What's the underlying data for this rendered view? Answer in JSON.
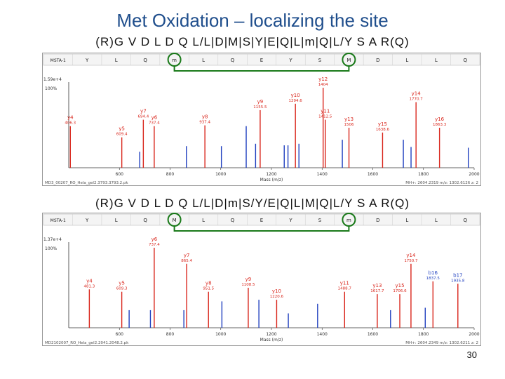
{
  "title": "Met Oxidation – localizing the site",
  "page_number": "30",
  "colors": {
    "y_ion": "#d9261c",
    "b_ion": "#1f3fbf",
    "unassigned": "#222222",
    "mark": "#1a7a1a"
  },
  "chart_data": [
    {
      "type": "bar",
      "sequence_label": "(R)G V D L D Q L/L|D|M|S|Y|E|Q|L|m|Q|L/Y S A R(Q)",
      "residue_row": [
        "MSTA-1",
        "Y",
        "L",
        "Q",
        "m",
        "L",
        "Q",
        "E",
        "Y",
        "S",
        "M",
        "D",
        "L",
        "L",
        "Q"
      ],
      "circled_residues": [
        "m",
        "M"
      ],
      "ylabel_top": "1.59e+4",
      "ylabel_100": "100%",
      "xlabel": "Mass (m/z)",
      "xlim": [
        400,
        2000
      ],
      "x_ticks": [
        600,
        800,
        1000,
        1200,
        1400,
        1600,
        1800,
        2000
      ],
      "peaks": [
        {
          "x": 406.3,
          "y": 0.52,
          "ion": "y"
        },
        {
          "x": 609.4,
          "y": 0.38,
          "ion": "y"
        },
        {
          "x": 680.1,
          "y": 0.2,
          "ion": "b"
        },
        {
          "x": 694.4,
          "y": 0.6,
          "ion": "y"
        },
        {
          "x": 737.4,
          "y": 0.52,
          "ion": "y"
        },
        {
          "x": 864.4,
          "y": 0.27,
          "ion": "b"
        },
        {
          "x": 937.4,
          "y": 0.53,
          "ion": "y"
        },
        {
          "x": 1002.5,
          "y": 0.27,
          "ion": "b"
        },
        {
          "x": 1100.4,
          "y": 0.52,
          "ion": "b"
        },
        {
          "x": 1137.4,
          "y": 0.3,
          "ion": "b"
        },
        {
          "x": 1155.5,
          "y": 0.72,
          "ion": "y"
        },
        {
          "x": 1250.5,
          "y": 0.28,
          "ion": "b"
        },
        {
          "x": 1265.3,
          "y": 0.28,
          "ion": "b"
        },
        {
          "x": 1294.6,
          "y": 0.8,
          "ion": "y"
        },
        {
          "x": 1308.5,
          "y": 0.3,
          "ion": "b"
        },
        {
          "x": 1404.0,
          "y": 1.0,
          "ion": "y"
        },
        {
          "x": 1412.5,
          "y": 0.6,
          "ion": "y"
        },
        {
          "x": 1479.8,
          "y": 0.35,
          "ion": "b"
        },
        {
          "x": 1506.0,
          "y": 0.5,
          "ion": "y"
        },
        {
          "x": 1638.6,
          "y": 0.44,
          "ion": "y"
        },
        {
          "x": 1720.6,
          "y": 0.35,
          "ion": "b"
        },
        {
          "x": 1751.0,
          "y": 0.26,
          "ion": "b"
        },
        {
          "x": 1770.7,
          "y": 0.82,
          "ion": "y"
        },
        {
          "x": 1863.3,
          "y": 0.5,
          "ion": "y"
        },
        {
          "x": 1977.0,
          "y": 0.25,
          "ion": "b"
        }
      ],
      "labels": [
        {
          "text": "y4",
          "x": 406.3
        },
        {
          "text": "y5",
          "x": 609.4
        },
        {
          "text": "y7",
          "x": 694.4
        },
        {
          "text": "y6",
          "x": 737.4
        },
        {
          "text": "y8",
          "x": 937.4
        },
        {
          "text": "y9",
          "x": 1155.5
        },
        {
          "text": "y10",
          "x": 1294.6
        },
        {
          "text": "y12",
          "x": 1404.0
        },
        {
          "text": "y11",
          "x": 1412.5
        },
        {
          "text": "y13",
          "x": 1506.0
        },
        {
          "text": "y15",
          "x": 1638.6
        },
        {
          "text": "y14",
          "x": 1770.7
        },
        {
          "text": "y16",
          "x": 1863.3
        }
      ],
      "footer_left": "MD3_00207_RO_Hela_gel2.3793.3793.2.pk",
      "footer_right": "MH+: 2604.2319   m/z: 1302.6126   z: 2"
    },
    {
      "type": "bar",
      "sequence_label": "(R)G V D L D Q L/L|D|m|S/Y/E|Q|L|M|Q|L/Y S A R(Q)",
      "residue_row": [
        "MSTA-1",
        "Y",
        "L",
        "Q",
        "M",
        "L",
        "Q",
        "E",
        "Y",
        "S",
        "m",
        "D",
        "L",
        "L",
        "Q"
      ],
      "circled_residues": [
        "M",
        "m"
      ],
      "ylabel_top": "1.37e+4",
      "ylabel_100": "100%",
      "xlabel": "Mass (m/z)",
      "xlim": [
        400,
        2000
      ],
      "x_ticks": [
        600,
        800,
        1000,
        1200,
        1400,
        1600,
        1800,
        2000
      ],
      "peaks": [
        {
          "x": 481.3,
          "y": 0.48,
          "ion": "y"
        },
        {
          "x": 609.3,
          "y": 0.45,
          "ion": "y"
        },
        {
          "x": 638.4,
          "y": 0.22,
          "ion": "b"
        },
        {
          "x": 722.4,
          "y": 0.22,
          "ion": "b"
        },
        {
          "x": 737.4,
          "y": 1.0,
          "ion": "y"
        },
        {
          "x": 854.4,
          "y": 0.22,
          "ion": "b"
        },
        {
          "x": 865.4,
          "y": 0.8,
          "ion": "y"
        },
        {
          "x": 951.5,
          "y": 0.45,
          "ion": "y"
        },
        {
          "x": 1004.5,
          "y": 0.33,
          "ion": "b"
        },
        {
          "x": 1108.5,
          "y": 0.5,
          "ion": "y"
        },
        {
          "x": 1150.5,
          "y": 0.35,
          "ion": "b"
        },
        {
          "x": 1220.6,
          "y": 0.35,
          "ion": "y"
        },
        {
          "x": 1266.6,
          "y": 0.18,
          "ion": "b"
        },
        {
          "x": 1382.2,
          "y": 0.3,
          "ion": "b"
        },
        {
          "x": 1488.7,
          "y": 0.45,
          "ion": "y"
        },
        {
          "x": 1617.7,
          "y": 0.42,
          "ion": "y"
        },
        {
          "x": 1670.0,
          "y": 0.22,
          "ion": "b"
        },
        {
          "x": 1706.6,
          "y": 0.42,
          "ion": "y"
        },
        {
          "x": 1750.7,
          "y": 0.8,
          "ion": "y"
        },
        {
          "x": 1807.0,
          "y": 0.25,
          "ion": "b"
        },
        {
          "x": 1837.5,
          "y": 0.58,
          "ion": "y"
        },
        {
          "x": 1935.8,
          "y": 0.55,
          "ion": "y"
        }
      ],
      "labels": [
        {
          "text": "y4",
          "x": 481.3
        },
        {
          "text": "y5",
          "x": 609.3
        },
        {
          "text": "y6",
          "x": 737.4
        },
        {
          "text": "y7",
          "x": 865.4
        },
        {
          "text": "y8",
          "x": 951.5
        },
        {
          "text": "y9",
          "x": 1108.5
        },
        {
          "text": "y10",
          "x": 1220.6
        },
        {
          "text": "y11",
          "x": 1488.7
        },
        {
          "text": "y13",
          "x": 1617.7
        },
        {
          "text": "y15",
          "x": 1706.6
        },
        {
          "text": "y14",
          "x": 1750.7
        },
        {
          "text": "b16",
          "x": 1837.5
        },
        {
          "text": "b17",
          "x": 1935.8
        }
      ],
      "footer_left": "MD2102007_RO_Hela_gel2.2041.2048.2.pk",
      "footer_right": "MH+: 2604.2349   m/z: 1302.6211   z: 2"
    }
  ]
}
